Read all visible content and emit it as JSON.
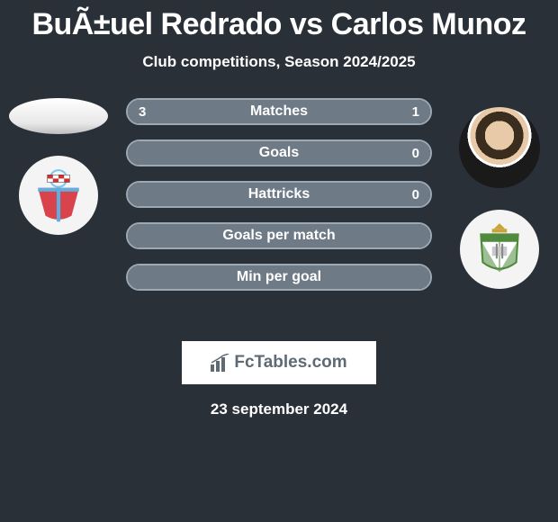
{
  "title": "BuÃ±uel Redrado vs Carlos Munoz",
  "subtitle": "Club competitions, Season 2024/2025",
  "date": "23 september 2024",
  "logo_text": "FcTables.com",
  "colors": {
    "background": "#2a3038",
    "bar_fill": "#6f7a87",
    "bar_border": "#9da8b5",
    "text": "#ffffff",
    "logo_bg": "#ffffff",
    "logo_text": "#5f6a75"
  },
  "stats": [
    {
      "label": "Matches",
      "left_val": "3",
      "right_val": "1",
      "left_pct": 75,
      "right_pct": 25
    },
    {
      "label": "Goals",
      "left_val": "",
      "right_val": "0",
      "left_pct": 100,
      "right_pct": 0
    },
    {
      "label": "Hattricks",
      "left_val": "",
      "right_val": "0",
      "left_pct": 100,
      "right_pct": 0
    },
    {
      "label": "Goals per match",
      "left_val": "",
      "right_val": "",
      "left_pct": 100,
      "right_pct": 0
    },
    {
      "label": "Min per goal",
      "left_val": "",
      "right_val": "",
      "left_pct": 100,
      "right_pct": 0
    }
  ],
  "crest_left": {
    "primary": "#d9434b",
    "secondary": "#5faee0",
    "accent": "#ffffff"
  },
  "crest_right": {
    "primary": "#4f8a3d",
    "secondary": "#ffffff",
    "accent": "#c9a43a"
  }
}
